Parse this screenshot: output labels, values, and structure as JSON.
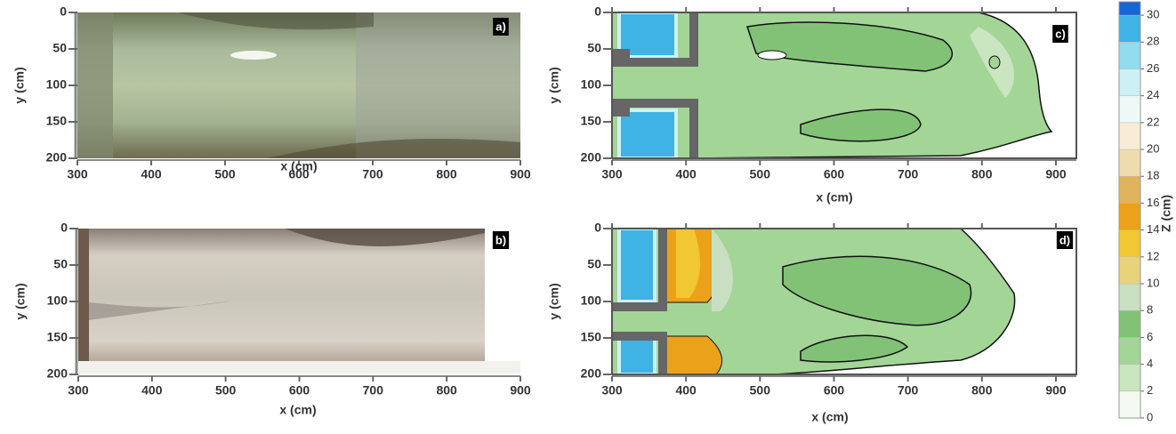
{
  "chart_data": [
    {
      "type": "image",
      "label": "a)",
      "xlabel": "x (cm)",
      "ylabel": "y (cm)",
      "xlim": [
        300,
        900
      ],
      "ylim": [
        0,
        200
      ],
      "xticks": [
        300,
        400,
        500,
        600,
        700,
        800,
        900
      ],
      "yticks": [
        0,
        50,
        100,
        150,
        200
      ]
    },
    {
      "type": "image",
      "label": "b)",
      "xlabel": "x (cm)",
      "ylabel": "y (cm)",
      "xlim": [
        300,
        900
      ],
      "ylim": [
        0,
        200
      ],
      "xticks": [
        300,
        400,
        500,
        600,
        700,
        800,
        900
      ],
      "yticks": [
        0,
        50,
        100,
        150,
        200
      ]
    },
    {
      "type": "contour",
      "label": "c)",
      "xlabel": "x (cm)",
      "ylabel": "y (cm)",
      "xlim": [
        300,
        900
      ],
      "ylim": [
        0,
        200
      ],
      "xticks": [
        300,
        400,
        500,
        600,
        700,
        800,
        900
      ],
      "yticks": [
        0,
        50,
        100,
        150,
        200
      ]
    },
    {
      "type": "contour",
      "label": "d)",
      "xlabel": "x (cm)",
      "ylabel": "y (cm)",
      "xlim": [
        300,
        900
      ],
      "ylim": [
        0,
        200
      ],
      "xticks": [
        300,
        400,
        500,
        600,
        700,
        800,
        900
      ],
      "yticks": [
        0,
        50,
        100,
        150,
        200
      ]
    }
  ],
  "colorbar": {
    "label": "Z (cm)",
    "zlim": [
      0,
      31
    ],
    "zticks": [
      0,
      2,
      4,
      6,
      8,
      10,
      12,
      14,
      16,
      18,
      20,
      22,
      24,
      26,
      28,
      30
    ],
    "colors": [
      "#f4faf2",
      "#c9e6c0",
      "#a3d597",
      "#82c277",
      "#c9dfc1",
      "#e7d37a",
      "#f2c832",
      "#eba21a",
      "#e0b45a",
      "#efdcae",
      "#f7edd6",
      "#eef8f6",
      "#cdf0f4",
      "#92dcef",
      "#3fb2e6",
      "#1764d6"
    ]
  }
}
